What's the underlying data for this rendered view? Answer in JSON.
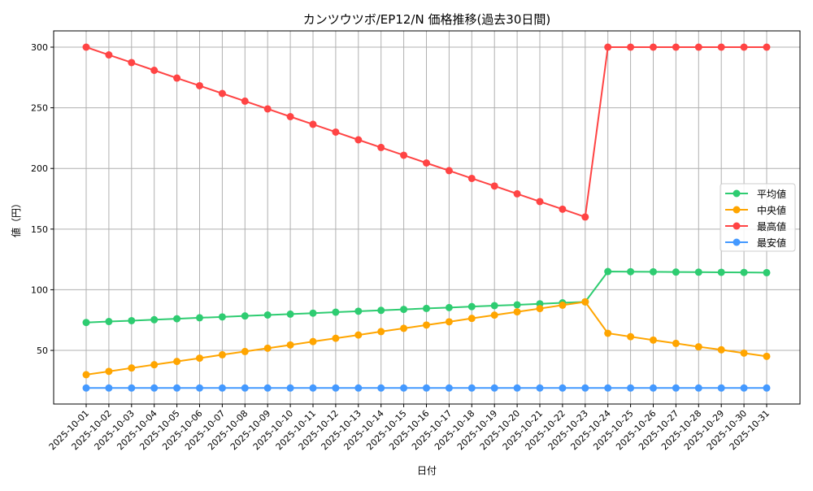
{
  "chart_data": {
    "type": "line",
    "title": "カンツウツボ/EP12/N 価格推移(過去30日間)",
    "xlabel": "日付",
    "ylabel": "値（円）",
    "ylim": [
      5.8,
      313.4
    ],
    "yticks": [
      50,
      100,
      150,
      200,
      250,
      300
    ],
    "grid": true,
    "legend_position": "center-right",
    "categories": [
      "2025-10-01",
      "2025-10-02",
      "2025-10-03",
      "2025-10-04",
      "2025-10-05",
      "2025-10-06",
      "2025-10-07",
      "2025-10-08",
      "2025-10-09",
      "2025-10-10",
      "2025-10-11",
      "2025-10-12",
      "2025-10-13",
      "2025-10-14",
      "2025-10-15",
      "2025-10-16",
      "2025-10-17",
      "2025-10-18",
      "2025-10-19",
      "2025-10-20",
      "2025-10-21",
      "2025-10-22",
      "2025-10-23",
      "2025-10-24",
      "2025-10-25",
      "2025-10-26",
      "2025-10-27",
      "2025-10-28",
      "2025-10-29",
      "2025-10-30",
      "2025-10-31"
    ],
    "series": [
      {
        "name": "平均値",
        "color": "#2ecc71",
        "values": [
          73,
          73.8,
          74.5,
          75.3,
          76.1,
          76.9,
          77.6,
          78.4,
          79.2,
          79.9,
          80.7,
          81.5,
          82.3,
          83,
          83.8,
          84.6,
          85.3,
          86.1,
          86.9,
          87.6,
          88.4,
          89.2,
          90,
          115,
          114.9,
          114.8,
          114.6,
          114.5,
          114.4,
          114.3,
          114.1
        ]
      },
      {
        "name": "中央値",
        "color": "#ffa500",
        "values": [
          30,
          32.7,
          35.5,
          38.2,
          40.9,
          43.6,
          46.4,
          49.1,
          51.8,
          54.5,
          57.3,
          60,
          62.7,
          65.5,
          68.2,
          70.9,
          73.6,
          76.4,
          79.1,
          81.8,
          84.5,
          87.3,
          90,
          64.1,
          61.3,
          58.5,
          55.8,
          53,
          50.5,
          47.8,
          45.1
        ]
      },
      {
        "name": "最高値",
        "color": "#ff4444",
        "values": [
          300,
          293.6,
          287.3,
          280.9,
          274.5,
          268.2,
          261.8,
          255.5,
          249.1,
          242.7,
          236.4,
          230,
          223.6,
          217.3,
          210.9,
          204.5,
          198.2,
          191.8,
          185.5,
          179.1,
          172.7,
          166.4,
          160,
          300,
          300,
          300,
          300,
          300,
          300,
          300,
          300
        ]
      },
      {
        "name": "最安値",
        "color": "#4499ff",
        "values": [
          19,
          19,
          19,
          19,
          19,
          19,
          19,
          19,
          19,
          19,
          19,
          19,
          19,
          19,
          19,
          19,
          19,
          19,
          19,
          19,
          19,
          19,
          19,
          19,
          19,
          19,
          19,
          19,
          19,
          19,
          19
        ]
      }
    ]
  }
}
